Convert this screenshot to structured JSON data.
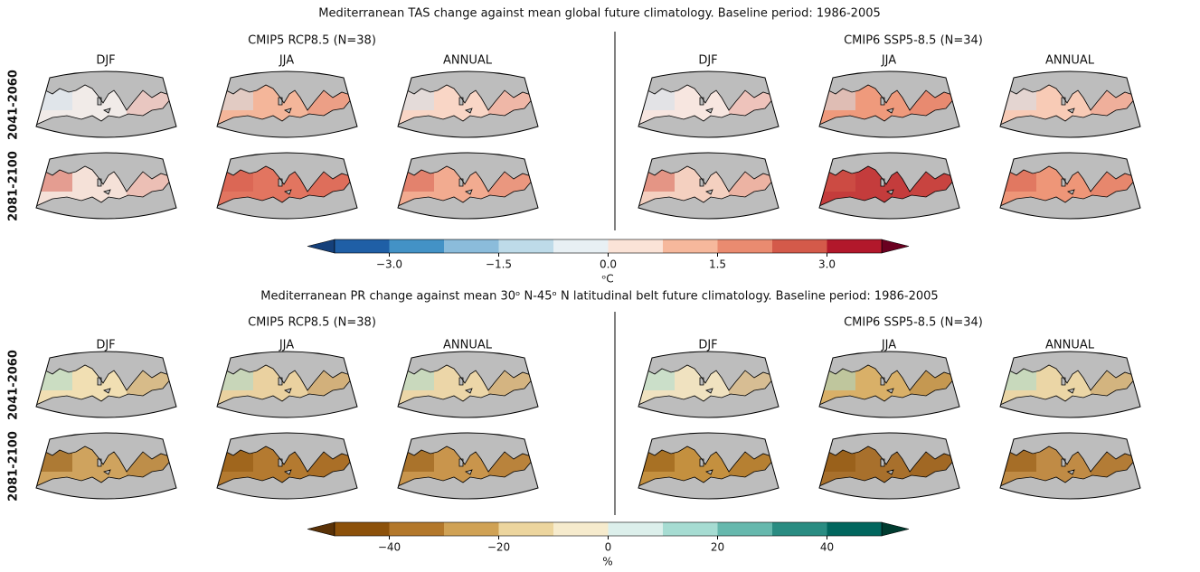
{
  "chart_data": [
    {
      "type": "map",
      "title": "Mediterranean TAS change against mean global future climatology. Baseline period: 1986-2005",
      "groups": [
        {
          "title": "CMIP5 RCP8.5 (N=38)",
          "columns": [
            "DJF",
            "JJA",
            "ANNUAL"
          ]
        },
        {
          "title": "CMIP6 SSP5-8.5 (N=34)",
          "columns": [
            "DJF",
            "JJA",
            "ANNUAL"
          ]
        }
      ],
      "rows": [
        "2041-2060",
        "2081-2100"
      ],
      "colorbar": {
        "label": "ᵒC",
        "lim": [
          -3.75,
          3.75
        ],
        "bounds": [
          -3.75,
          -3,
          -2.25,
          -1.5,
          -0.75,
          0,
          0.75,
          1.5,
          2.25,
          3,
          3.75
        ],
        "colors": [
          "#1f5fa6",
          "#4392c6",
          "#8bbcdb",
          "#bedbe9",
          "#e8f0f4",
          "#fbe3d7",
          "#f6b89c",
          "#ea8b70",
          "#d45a4a",
          "#b2182b"
        ],
        "extend_colors": [
          "#15407a",
          "#6a0020"
        ],
        "ticks": [
          {
            "value": -3,
            "label": "−3.0"
          },
          {
            "value": -1.5,
            "label": "−1.5"
          },
          {
            "value": 0,
            "label": "0.0"
          },
          1.5,
          {
            "value": 3,
            "label": "3.0"
          }
        ]
      }
    },
    {
      "type": "map",
      "title": "Mediterranean PR change against mean 30ᵒ N-45ᵒ N latitudinal belt future climatology. Baseline period: 1986-2005",
      "groups": [
        {
          "title": "CMIP5 RCP8.5 (N=38)",
          "columns": [
            "DJF",
            "JJA",
            "ANNUAL"
          ]
        },
        {
          "title": "CMIP6 SSP5-8.5 (N=34)",
          "columns": [
            "DJF",
            "JJA",
            "ANNUAL"
          ]
        }
      ],
      "rows": [
        "2041-2060",
        "2081-2100"
      ],
      "colorbar": {
        "label": "%",
        "lim": [
          -50,
          50
        ],
        "bounds": [
          -50,
          -40,
          -30,
          -20,
          -10,
          0,
          10,
          20,
          30,
          40,
          50
        ],
        "colors": [
          "#8c510a",
          "#b3782b",
          "#d0a255",
          "#ecd59e",
          "#f6ebcd",
          "#dcefeb",
          "#a6dcd2",
          "#66b8ad",
          "#2a8c82",
          "#01665e"
        ],
        "extend_colors": [
          "#5a3207",
          "#003c30"
        ],
        "ticks": [
          {
            "value": -40,
            "label": "−40"
          },
          {
            "value": -20,
            "label": "−20"
          },
          0,
          20,
          40
        ]
      }
    }
  ]
}
